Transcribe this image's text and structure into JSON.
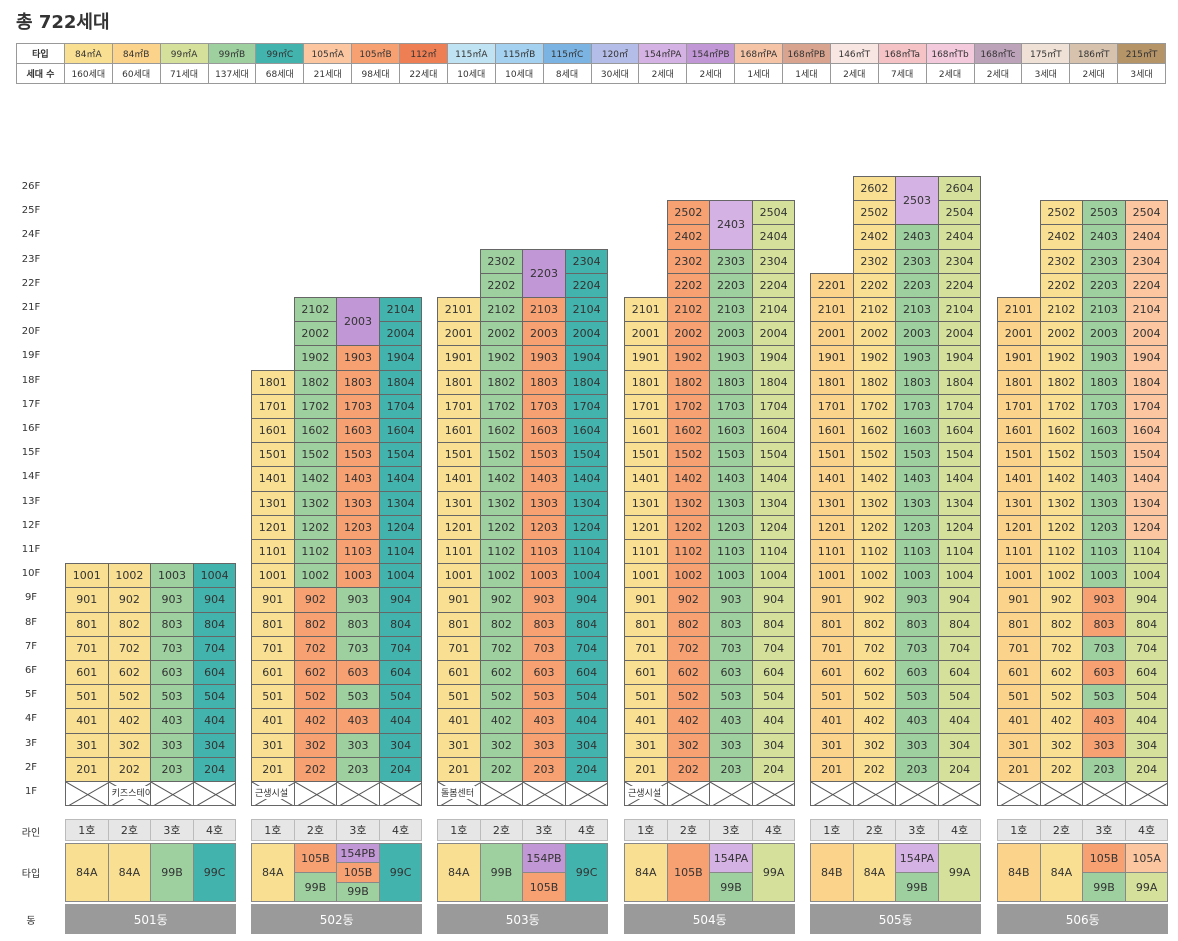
{
  "title": "총 722세대",
  "legend": {
    "type_header": "타입",
    "count_header": "세대 수",
    "items": [
      {
        "code": "84A",
        "type": "84㎡A",
        "count": "160세대",
        "color": "#f9df92"
      },
      {
        "code": "84B",
        "type": "84㎡B",
        "count": "60세대",
        "color": "#fbd38a"
      },
      {
        "code": "99A",
        "type": "99㎡A",
        "count": "71세대",
        "color": "#d5e09b"
      },
      {
        "code": "99B",
        "type": "99㎡B",
        "count": "137세대",
        "color": "#9dcf9f"
      },
      {
        "code": "99C",
        "type": "99㎡C",
        "count": "68세대",
        "color": "#43b3ad"
      },
      {
        "code": "105A",
        "type": "105㎡A",
        "count": "21세대",
        "color": "#fcc6a1"
      },
      {
        "code": "105B",
        "type": "105㎡B",
        "count": "98세대",
        "color": "#f7a072"
      },
      {
        "code": "112",
        "type": "112㎡",
        "count": "22세대",
        "color": "#ee7e53"
      },
      {
        "code": "115A",
        "type": "115㎡A",
        "count": "10세대",
        "color": "#bfe3f2"
      },
      {
        "code": "115B",
        "type": "115㎡B",
        "count": "10세대",
        "color": "#a3d1ef"
      },
      {
        "code": "115C",
        "type": "115㎡C",
        "count": "8세대",
        "color": "#7bb4e2"
      },
      {
        "code": "120",
        "type": "120㎡",
        "count": "30세대",
        "color": "#b4bde7"
      },
      {
        "code": "154PA",
        "type": "154㎡PA",
        "count": "2세대",
        "color": "#d5b2e4"
      },
      {
        "code": "154PB",
        "type": "154㎡PB",
        "count": "2세대",
        "color": "#c297d6"
      },
      {
        "code": "168PA",
        "type": "168㎡PA",
        "count": "1세대",
        "color": "#f5c4a6"
      },
      {
        "code": "168PB",
        "type": "168㎡PB",
        "count": "1세대",
        "color": "#d9a48f"
      },
      {
        "code": "146T",
        "type": "146㎡T",
        "count": "2세대",
        "color": "#f8e6e2"
      },
      {
        "code": "168Ta",
        "type": "168㎡Ta",
        "count": "7세대",
        "color": "#f5c3c6"
      },
      {
        "code": "168Tb",
        "type": "168㎡Tb",
        "count": "2세대",
        "color": "#f3c9dc"
      },
      {
        "code": "168Tc",
        "type": "168㎡Tc",
        "count": "2세대",
        "color": "#bda3ba"
      },
      {
        "code": "175T",
        "type": "175㎡T",
        "count": "3세대",
        "color": "#efe1d6"
      },
      {
        "code": "186T",
        "type": "186㎡T",
        "count": "2세대",
        "color": "#d6c2ad"
      },
      {
        "code": "215T",
        "type": "215㎡T",
        "count": "3세대",
        "color": "#b59468"
      }
    ]
  },
  "floors": [
    "26F",
    "25F",
    "24F",
    "23F",
    "22F",
    "21F",
    "20F",
    "19F",
    "18F",
    "17F",
    "16F",
    "15F",
    "14F",
    "13F",
    "12F",
    "11F",
    "10F",
    "9F",
    "8F",
    "7F",
    "6F",
    "5F",
    "4F",
    "3F",
    "2F",
    "1F"
  ],
  "row_labels": {
    "line": "라인",
    "type": "타입",
    "building": "동"
  },
  "buildings": [
    {
      "name": "501동",
      "lines": [
        "1호",
        "2호",
        "3호",
        "4호"
      ],
      "first_floor": [
        {
          "line": 1,
          "label": ""
        },
        {
          "line": 2,
          "label": "키즈스테이션"
        },
        {
          "line": 3,
          "label": ""
        },
        {
          "line": 4,
          "label": ""
        }
      ],
      "types": [
        [
          {
            "code": "84A"
          }
        ],
        [
          {
            "code": "84A"
          }
        ],
        [
          {
            "code": "99B"
          }
        ],
        [
          {
            "code": "99C"
          }
        ]
      ],
      "columns": [
        {
          "top": 10,
          "units": [
            [
              "84A",
              2,
              10
            ]
          ]
        },
        {
          "top": 10,
          "units": [
            [
              "84A",
              2,
              10
            ]
          ]
        },
        {
          "top": 10,
          "units": [
            [
              "99B",
              2,
              10
            ]
          ]
        },
        {
          "top": 10,
          "units": [
            [
              "99C",
              2,
              10
            ]
          ]
        }
      ]
    },
    {
      "name": "502동",
      "lines": [
        "1호",
        "2호",
        "3호",
        "4호"
      ],
      "first_floor": [
        {
          "line": 1,
          "label": "근생시설"
        },
        {
          "line": 2,
          "label": ""
        },
        {
          "line": 3,
          "label": ""
        },
        {
          "line": 4,
          "label": ""
        }
      ],
      "types": [
        [
          {
            "code": "84A"
          }
        ],
        [
          {
            "code": "105B"
          },
          {
            "code": "99B"
          }
        ],
        [
          {
            "code": "154PB"
          },
          {
            "code": "105B"
          },
          {
            "code": "99B"
          }
        ],
        [
          {
            "code": "99C"
          }
        ]
      ],
      "columns": [
        {
          "top": 18,
          "units": [
            [
              "84A",
              2,
              18
            ]
          ]
        },
        {
          "top": 21,
          "units": [
            [
              "105B",
              2,
              9
            ],
            [
              "99B",
              10,
              21
            ]
          ]
        },
        {
          "top": 21,
          "units": [
            [
              "99B",
              2,
              3
            ],
            [
              "105B",
              4,
              4
            ],
            [
              "99B",
              5,
              5
            ],
            [
              "105B",
              6,
              6
            ],
            [
              "99B",
              7,
              9
            ],
            [
              "105B",
              10,
              19
            ]
          ],
          "merged": [
            {
              "code": "154PB",
              "from": 20,
              "to": 21,
              "label": "2003"
            }
          ]
        },
        {
          "top": 21,
          "units": [
            [
              "99C",
              2,
              21
            ]
          ]
        }
      ]
    },
    {
      "name": "503동",
      "lines": [
        "1호",
        "2호",
        "3호",
        "4호"
      ],
      "first_floor": [
        {
          "line": 1,
          "label": "돌봄센터"
        },
        {
          "line": 2,
          "label": ""
        },
        {
          "line": 3,
          "label": ""
        },
        {
          "line": 4,
          "label": ""
        }
      ],
      "types": [
        [
          {
            "code": "84A"
          }
        ],
        [
          {
            "code": "99B"
          }
        ],
        [
          {
            "code": "154PB"
          },
          {
            "code": "105B"
          }
        ],
        [
          {
            "code": "99C"
          }
        ]
      ],
      "columns": [
        {
          "top": 21,
          "units": [
            [
              "84A",
              2,
              21
            ]
          ]
        },
        {
          "top": 23,
          "units": [
            [
              "99B",
              2,
              23
            ]
          ]
        },
        {
          "top": 23,
          "units": [
            [
              "105B",
              2,
              21
            ]
          ],
          "merged": [
            {
              "code": "154PB",
              "from": 22,
              "to": 23,
              "label": "2203"
            }
          ]
        },
        {
          "top": 23,
          "units": [
            [
              "99C",
              2,
              23
            ]
          ]
        }
      ]
    },
    {
      "name": "504동",
      "lines": [
        "1호",
        "2호",
        "3호",
        "4호"
      ],
      "first_floor": [
        {
          "line": 1,
          "label": "근생시설"
        },
        {
          "line": 2,
          "label": ""
        },
        {
          "line": 3,
          "label": ""
        },
        {
          "line": 4,
          "label": ""
        }
      ],
      "types": [
        [
          {
            "code": "84A"
          }
        ],
        [
          {
            "code": "105B"
          }
        ],
        [
          {
            "code": "154PA"
          },
          {
            "code": "99B"
          }
        ],
        [
          {
            "code": "99A"
          }
        ]
      ],
      "columns": [
        {
          "top": 21,
          "units": [
            [
              "84A",
              2,
              21
            ]
          ]
        },
        {
          "top": 25,
          "units": [
            [
              "105B",
              2,
              25
            ]
          ]
        },
        {
          "top": 25,
          "units": [
            [
              "99B",
              2,
              23
            ]
          ],
          "merged": [
            {
              "code": "154PA",
              "from": 24,
              "to": 25,
              "label": "2403"
            }
          ]
        },
        {
          "top": 25,
          "units": [
            [
              "99A",
              2,
              25
            ]
          ]
        }
      ]
    },
    {
      "name": "505동",
      "lines": [
        "1호",
        "2호",
        "3호",
        "4호"
      ],
      "first_floor": [
        {
          "line": 1,
          "label": ""
        },
        {
          "line": 2,
          "label": ""
        },
        {
          "line": 3,
          "label": ""
        },
        {
          "line": 4,
          "label": ""
        }
      ],
      "types": [
        [
          {
            "code": "84B"
          }
        ],
        [
          {
            "code": "84A"
          }
        ],
        [
          {
            "code": "154PA"
          },
          {
            "code": "99B"
          }
        ],
        [
          {
            "code": "99A"
          }
        ]
      ],
      "columns": [
        {
          "top": 22,
          "units": [
            [
              "84B",
              2,
              22
            ]
          ]
        },
        {
          "top": 26,
          "units": [
            [
              "84A",
              2,
              26
            ]
          ]
        },
        {
          "top": 26,
          "units": [
            [
              "99B",
              2,
              24
            ]
          ],
          "merged": [
            {
              "code": "154PA",
              "from": 25,
              "to": 26,
              "label": "2503"
            }
          ]
        },
        {
          "top": 26,
          "units": [
            [
              "99A",
              2,
              26
            ]
          ]
        }
      ]
    },
    {
      "name": "506동",
      "lines": [
        "1호",
        "2호",
        "3호",
        "4호"
      ],
      "first_floor": [
        {
          "line": 1,
          "label": ""
        },
        {
          "line": 2,
          "label": ""
        },
        {
          "line": 3,
          "label": ""
        },
        {
          "line": 4,
          "label": ""
        }
      ],
      "types": [
        [
          {
            "code": "84B"
          }
        ],
        [
          {
            "code": "84A"
          }
        ],
        [
          {
            "code": "105B"
          },
          {
            "code": "99B"
          }
        ],
        [
          {
            "code": "105A"
          },
          {
            "code": "99A"
          }
        ]
      ],
      "columns": [
        {
          "top": 21,
          "units": [
            [
              "84B",
              2,
              21
            ]
          ]
        },
        {
          "top": 25,
          "units": [
            [
              "84A",
              2,
              25
            ]
          ]
        },
        {
          "top": 25,
          "units": [
            [
              "99B",
              2,
              2
            ],
            [
              "105B",
              3,
              4
            ],
            [
              "99B",
              5,
              5
            ],
            [
              "105B",
              6,
              6
            ],
            [
              "99B",
              7,
              7
            ],
            [
              "105B",
              8,
              9
            ],
            [
              "99B",
              10,
              25
            ]
          ]
        },
        {
          "top": 25,
          "units": [
            [
              "99A",
              2,
              11
            ],
            [
              "105A",
              12,
              25
            ]
          ]
        }
      ]
    }
  ]
}
